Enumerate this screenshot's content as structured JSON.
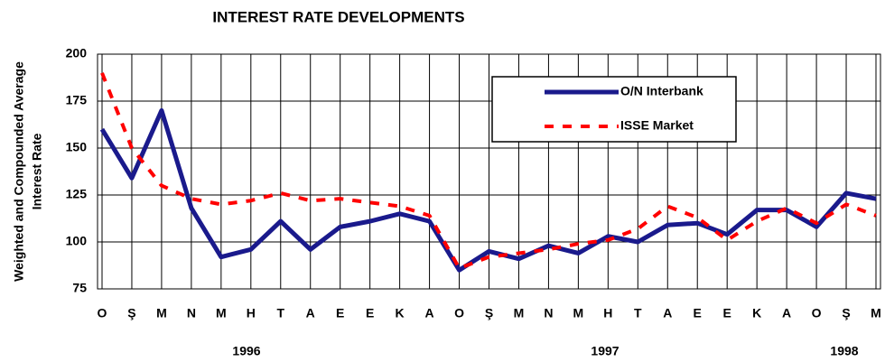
{
  "chart_data": {
    "type": "line",
    "title": "INTEREST RATE DEVELOPMENTS",
    "y_label": [
      "Weighted and Compounded Average",
      "Interest Rate"
    ],
    "categories": [
      "O",
      "Ş",
      "M",
      "N",
      "M",
      "H",
      "T",
      "A",
      "E",
      "E",
      "K",
      "A",
      "O",
      "Ş",
      "M",
      "N",
      "M",
      "H",
      "T",
      "A",
      "E",
      "E",
      "K",
      "A",
      "O",
      "Ş",
      "M"
    ],
    "years": [
      "1996",
      "1997",
      "1998"
    ],
    "series": [
      {
        "name": "O/N Interbank",
        "color": "#1a1a8c",
        "dashed": false,
        "values": [
          160,
          134,
          170,
          118,
          92,
          96,
          111,
          96,
          108,
          111,
          115,
          111,
          85,
          95,
          91,
          98,
          94,
          103,
          100,
          109,
          110,
          104,
          117,
          117,
          108,
          126,
          123
        ]
      },
      {
        "name": "ISSE Market",
        "color": "#ff0000",
        "dashed": true,
        "values": [
          190,
          150,
          130,
          123,
          120,
          122,
          126,
          122,
          123,
          121,
          119,
          114,
          86,
          92,
          94,
          96,
          99,
          101,
          107,
          119,
          113,
          101,
          111,
          118,
          110,
          120,
          114
        ]
      }
    ],
    "ylim": [
      75,
      200
    ],
    "yticks": [
      75,
      100,
      125,
      150,
      175,
      200
    ],
    "grid": true,
    "legend": "upper right"
  }
}
